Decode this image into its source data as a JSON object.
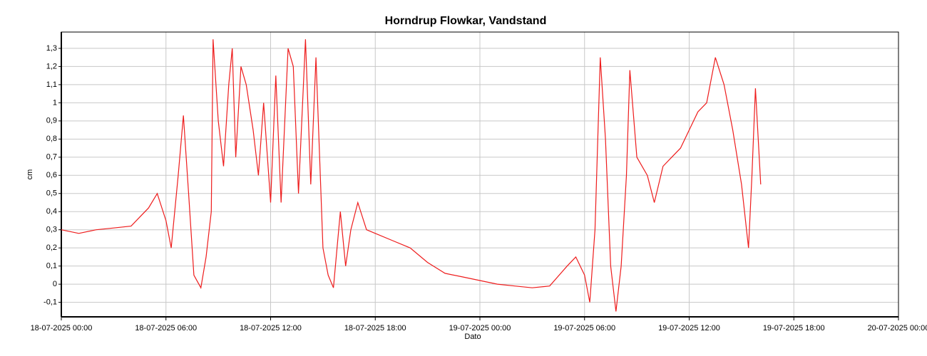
{
  "chart_data": {
    "type": "line",
    "title": "Horndrup Flowkar, Vandstand",
    "xlabel": "Dato",
    "ylabel": "cm",
    "color": "#ee1c1c",
    "grid": true,
    "x": [
      "2025-07-18 00:00",
      "2025-07-18 01:00",
      "2025-07-18 02:00",
      "2025-07-18 03:00",
      "2025-07-18 04:00",
      "2025-07-18 05:00",
      "2025-07-18 05:30",
      "2025-07-18 06:00",
      "2025-07-18 06:18",
      "2025-07-18 06:42",
      "2025-07-18 07:00",
      "2025-07-18 07:18",
      "2025-07-18 07:36",
      "2025-07-18 08:00",
      "2025-07-18 08:18",
      "2025-07-18 08:36",
      "2025-07-18 08:42",
      "2025-07-18 09:00",
      "2025-07-18 09:18",
      "2025-07-18 09:36",
      "2025-07-18 09:48",
      "2025-07-18 10:00",
      "2025-07-18 10:18",
      "2025-07-18 10:36",
      "2025-07-18 11:00",
      "2025-07-18 11:18",
      "2025-07-18 11:36",
      "2025-07-18 12:00",
      "2025-07-18 12:18",
      "2025-07-18 12:36",
      "2025-07-18 13:00",
      "2025-07-18 13:18",
      "2025-07-18 13:36",
      "2025-07-18 14:00",
      "2025-07-18 14:18",
      "2025-07-18 14:36",
      "2025-07-18 15:00",
      "2025-07-18 15:18",
      "2025-07-18 15:36",
      "2025-07-18 16:00",
      "2025-07-18 16:18",
      "2025-07-18 16:36",
      "2025-07-18 17:00",
      "2025-07-18 17:30",
      "2025-07-18 18:00",
      "2025-07-18 19:00",
      "2025-07-18 20:00",
      "2025-07-18 21:00",
      "2025-07-18 22:00",
      "2025-07-18 23:00",
      "2025-07-19 00:00",
      "2025-07-19 01:00",
      "2025-07-19 02:00",
      "2025-07-19 03:00",
      "2025-07-19 04:00",
      "2025-07-19 05:00",
      "2025-07-19 05:30",
      "2025-07-19 06:00",
      "2025-07-19 06:18",
      "2025-07-19 06:36",
      "2025-07-19 06:54",
      "2025-07-19 07:12",
      "2025-07-19 07:30",
      "2025-07-19 07:48",
      "2025-07-19 08:06",
      "2025-07-19 08:24",
      "2025-07-19 08:36",
      "2025-07-19 09:00",
      "2025-07-19 09:36",
      "2025-07-19 10:00",
      "2025-07-19 10:30",
      "2025-07-19 11:00",
      "2025-07-19 11:30",
      "2025-07-19 12:00",
      "2025-07-19 12:30",
      "2025-07-19 13:00",
      "2025-07-19 13:30",
      "2025-07-19 14:00",
      "2025-07-19 14:30",
      "2025-07-19 15:00",
      "2025-07-19 15:24",
      "2025-07-19 15:36",
      "2025-07-19 15:48",
      "2025-07-19 16:06"
    ],
    "values": [
      0.3,
      0.28,
      0.3,
      0.31,
      0.32,
      0.42,
      0.5,
      0.35,
      0.2,
      0.6,
      0.93,
      0.5,
      0.05,
      -0.02,
      0.15,
      0.4,
      1.35,
      0.9,
      0.65,
      1.1,
      1.3,
      0.7,
      1.2,
      1.1,
      0.85,
      0.6,
      1.0,
      0.45,
      1.15,
      0.45,
      1.3,
      1.2,
      0.5,
      1.35,
      0.55,
      1.25,
      0.2,
      0.05,
      -0.02,
      0.4,
      0.1,
      0.3,
      0.45,
      0.3,
      0.28,
      0.24,
      0.2,
      0.12,
      0.06,
      0.04,
      0.02,
      0.0,
      -0.01,
      -0.02,
      -0.01,
      0.1,
      0.15,
      0.05,
      -0.1,
      0.3,
      1.25,
      0.8,
      0.1,
      -0.15,
      0.1,
      0.6,
      1.18,
      0.7,
      0.6,
      0.45,
      0.65,
      0.7,
      0.75,
      0.85,
      0.95,
      1.0,
      1.25,
      1.1,
      0.85,
      0.55,
      0.2,
      0.6,
      1.08,
      0.55
    ],
    "xlim": [
      "2025-07-18 00:00",
      "2025-07-20 00:00"
    ],
    "xticks": [
      {
        "value": "2025-07-18 00:00",
        "label": "18-07-2025 00:00"
      },
      {
        "value": "2025-07-18 06:00",
        "label": "18-07-2025 06:00"
      },
      {
        "value": "2025-07-18 12:00",
        "label": "18-07-2025 12:00"
      },
      {
        "value": "2025-07-18 18:00",
        "label": "18-07-2025 18:00"
      },
      {
        "value": "2025-07-19 00:00",
        "label": "19-07-2025 00:00"
      },
      {
        "value": "2025-07-19 06:00",
        "label": "19-07-2025 06:00"
      },
      {
        "value": "2025-07-19 12:00",
        "label": "19-07-2025 12:00"
      },
      {
        "value": "2025-07-19 18:00",
        "label": "19-07-2025 18:00"
      },
      {
        "value": "2025-07-20 00:00",
        "label": "20-07-2025 00:00"
      }
    ],
    "ylim": [
      -0.18,
      1.39
    ],
    "yticks": [
      {
        "value": -0.1,
        "label": "-0,1"
      },
      0,
      {
        "value": 0.1,
        "label": "0,1"
      },
      {
        "value": 0.2,
        "label": "0,2"
      },
      {
        "value": 0.3,
        "label": "0,3"
      },
      {
        "value": 0.4,
        "label": "0,4"
      },
      {
        "value": 0.5,
        "label": "0,5"
      },
      {
        "value": 0.6,
        "label": "0,6"
      },
      {
        "value": 0.7,
        "label": "0,7"
      },
      {
        "value": 0.8,
        "label": "0,8"
      },
      {
        "value": 0.9,
        "label": "0,9"
      },
      1,
      {
        "value": 1.1,
        "label": "1,1"
      },
      {
        "value": 1.2,
        "label": "1,2"
      },
      {
        "value": 1.3,
        "label": "1,3"
      }
    ]
  }
}
